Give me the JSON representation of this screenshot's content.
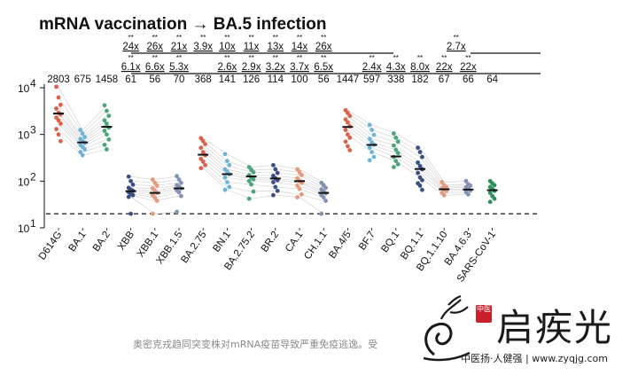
{
  "chart_data": {
    "type": "scatter",
    "title": "mRNA vaccination → BA.5 infection",
    "y_scale": "log",
    "ylim": [
      10,
      10000
    ],
    "y_ticks": [
      {
        "value": 10,
        "base": "10",
        "exp": "1"
      },
      {
        "value": 100,
        "base": "10",
        "exp": "2"
      },
      {
        "value": 1000,
        "base": "10",
        "exp": "3"
      },
      {
        "value": 10000,
        "base": "10",
        "exp": "4"
      }
    ],
    "detection_limit": 20,
    "categories": [
      "D614G",
      "BA.1",
      "BA.2",
      "XBB",
      "XBB.1",
      "XBB.1.5",
      "BA.2.75",
      "BN.1",
      "BA.2.75.2",
      "BR.2",
      "CA.1",
      "CH.1.1",
      "BA.4/5",
      "BF.7",
      "BQ.1",
      "BQ.1.1",
      "BQ.1.1.10",
      "BA.4.6.3",
      "SARS-CoV-1"
    ],
    "colors": [
      "#d9634a",
      "#6fb3d6",
      "#4aa57a",
      "#3b4f82",
      "#e49a7e",
      "#8391b4",
      "#d9634a",
      "#6fb3d6",
      "#4aa57a",
      "#3b4f82",
      "#e49a7e",
      "#8391b4",
      "#d9634a",
      "#6fb3d6",
      "#4aa57a",
      "#3b4f82",
      "#e49a7e",
      "#8391b4",
      "#2f8f5c"
    ],
    "gmt_labels": [
      "2803",
      "675",
      "1458",
      "61",
      "56",
      "70",
      "368",
      "141",
      "126",
      "114",
      "100",
      "56",
      "1447",
      "597",
      "338",
      "182",
      "67",
      "66",
      "64"
    ],
    "gmt": [
      2803,
      675,
      1458,
      61,
      56,
      70,
      368,
      141,
      126,
      114,
      100,
      56,
      1447,
      597,
      338,
      182,
      67,
      66,
      64
    ],
    "points": [
      [
        10500,
        6200,
        4300,
        3600,
        2900,
        2700,
        2300,
        2000,
        1700,
        1300,
        1000,
        720
      ],
      [
        1250,
        1050,
        880,
        800,
        720,
        660,
        590,
        540,
        480,
        420,
        360
      ],
      [
        4200,
        3200,
        2500,
        2000,
        1700,
        1400,
        1200,
        1000,
        780,
        600,
        480
      ],
      [
        125,
        100,
        84,
        72,
        66,
        62,
        58,
        54,
        50,
        46,
        20
      ],
      [
        108,
        92,
        80,
        70,
        62,
        56,
        50,
        44,
        38,
        20
      ],
      [
        128,
        108,
        92,
        82,
        76,
        70,
        64,
        58,
        48,
        22
      ],
      [
        830,
        720,
        620,
        520,
        420,
        360,
        300,
        260,
        220,
        190
      ],
      [
        380,
        270,
        220,
        180,
        160,
        140,
        120,
        95,
        75,
        65
      ],
      [
        200,
        175,
        155,
        135,
        120,
        110,
        100,
        85,
        60,
        42
      ],
      [
        220,
        180,
        150,
        130,
        115,
        105,
        95,
        75,
        62,
        50
      ],
      [
        180,
        155,
        135,
        115,
        100,
        92,
        80,
        68,
        52,
        45
      ],
      [
        92,
        82,
        72,
        66,
        60,
        55,
        50,
        45,
        38,
        20
      ],
      [
        3300,
        2900,
        2500,
        2100,
        1800,
        1500,
        1250,
        1000,
        850,
        700,
        560,
        460
      ],
      [
        1600,
        1250,
        980,
        800,
        680,
        600,
        520,
        420,
        330,
        280
      ],
      [
        1050,
        850,
        700,
        580,
        470,
        400,
        330,
        270,
        230,
        200
      ],
      [
        520,
        420,
        330,
        250,
        210,
        180,
        150,
        120,
        105,
        90,
        80,
        65
      ],
      [
        95,
        82,
        75,
        70,
        66,
        62,
        56,
        50
      ],
      [
        100,
        86,
        80,
        74,
        68,
        63,
        58,
        52
      ],
      [
        100,
        90,
        82,
        75,
        68,
        62,
        56,
        48,
        42,
        36
      ]
    ],
    "fold_row_top": [
      {
        "cat": 3,
        "label": "24x"
      },
      {
        "cat": 4,
        "label": "26x"
      },
      {
        "cat": 5,
        "label": "21x"
      },
      {
        "cat": 6,
        "label": "3.9x"
      },
      {
        "cat": 7,
        "label": "10x"
      },
      {
        "cat": 8,
        "label": "11x"
      },
      {
        "cat": 9,
        "label": "13x"
      },
      {
        "cat": 10,
        "label": "14x"
      },
      {
        "cat": 11,
        "label": "26x"
      },
      {
        "cat": 16.5,
        "label": "2.7x"
      }
    ],
    "fold_row_bottom": [
      {
        "cat": 3,
        "label": "6.1x"
      },
      {
        "cat": 4,
        "label": "6.6x"
      },
      {
        "cat": 5,
        "label": "5.3x"
      },
      {
        "cat": 7,
        "label": "2.6x"
      },
      {
        "cat": 8,
        "label": "2.9x"
      },
      {
        "cat": 9,
        "label": "3.2x"
      },
      {
        "cat": 10,
        "label": "3.7x"
      },
      {
        "cat": 11,
        "label": "6.5x"
      },
      {
        "cat": 13,
        "label": "2.4x"
      },
      {
        "cat": 14,
        "label": "4.3x"
      },
      {
        "cat": 15,
        "label": "8.0x"
      },
      {
        "cat": 16,
        "label": "22x"
      },
      {
        "cat": 17,
        "label": "22x"
      }
    ],
    "significance": "**"
  },
  "caption": "奥密克戎趋同突变株对mRNA疫苗导致严重免疫逃逸。受",
  "watermark": {
    "name": "启疾光",
    "subtitle": "中医扬·人健强 | www.zyqjg.com",
    "seal": "中医"
  }
}
